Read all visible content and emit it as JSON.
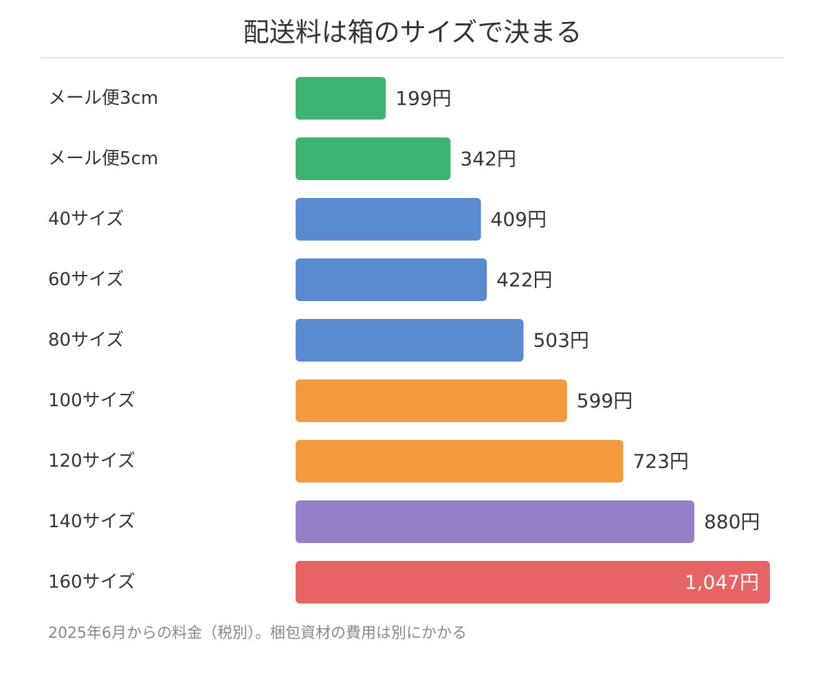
{
  "title": "配送料は箱のサイズで決まる",
  "footnote": "2025年6月からの料金（税別）。梱包資材の費用は別にかかる",
  "colors": {
    "mail": "#3cb371",
    "small": "#5b8bcf",
    "medium": "#f39a3c",
    "large": "#957fc7",
    "xlarge": "#e86363",
    "label_text": "#333333",
    "inside_label_text": "#ffffff"
  },
  "chart_data": {
    "type": "bar",
    "orientation": "horizontal",
    "title": "配送料は箱のサイズで決まる",
    "categories": [
      "メール便3cm",
      "メール便5cm",
      "40サイズ",
      "60サイズ",
      "80サイズ",
      "100サイズ",
      "120サイズ",
      "140サイズ",
      "160サイズ"
    ],
    "values": [
      199,
      342,
      409,
      422,
      503,
      599,
      723,
      880,
      1047
    ],
    "value_labels": [
      "199円",
      "342円",
      "409円",
      "422円",
      "503円",
      "599円",
      "723円",
      "880円",
      "1,047円"
    ],
    "bar_groups": [
      "mail",
      "mail",
      "small",
      "small",
      "small",
      "medium",
      "medium",
      "large",
      "xlarge"
    ],
    "xlim": [
      0,
      1047
    ],
    "grid": false,
    "legend": "none"
  }
}
